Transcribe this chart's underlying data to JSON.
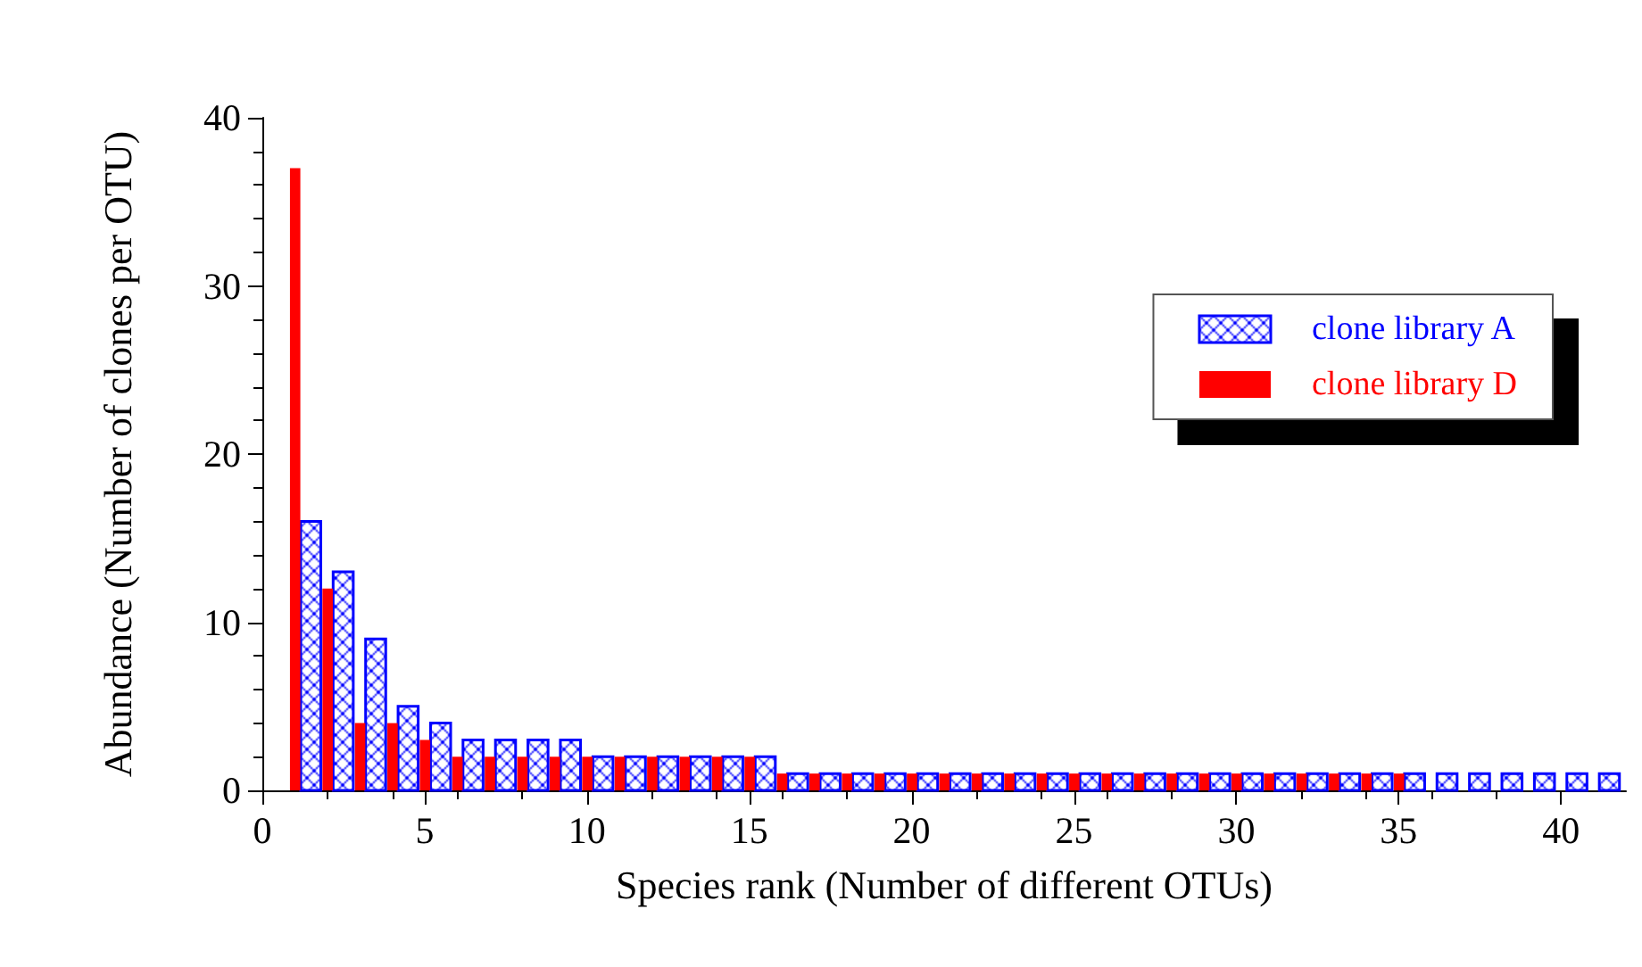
{
  "chart_data": {
    "type": "bar",
    "xlabel": "Species rank (Number of different OTUs)",
    "ylabel": "Abundance (Number of clones per OTU)",
    "x": [
      1,
      2,
      3,
      4,
      5,
      6,
      7,
      8,
      9,
      10,
      11,
      12,
      13,
      14,
      15,
      16,
      17,
      18,
      19,
      20,
      21,
      22,
      23,
      24,
      25,
      26,
      27,
      28,
      29,
      30,
      31,
      32,
      33,
      34,
      35,
      36,
      37,
      38,
      39,
      40,
      41
    ],
    "series": [
      {
        "name": "clone library A",
        "color": "#0000ff",
        "values": [
          16,
          13,
          9,
          5,
          4,
          3,
          3,
          3,
          3,
          2,
          2,
          2,
          2,
          2,
          2,
          1,
          1,
          1,
          1,
          1,
          1,
          1,
          1,
          1,
          1,
          1,
          1,
          1,
          1,
          1,
          1,
          1,
          1,
          1,
          1,
          1,
          1,
          1,
          1,
          1,
          1
        ]
      },
      {
        "name": "clone library D",
        "color": "#ff0000",
        "values": [
          37,
          12,
          4,
          4,
          3,
          2,
          2,
          2,
          2,
          2,
          2,
          2,
          2,
          2,
          2,
          1,
          1,
          1,
          1,
          1,
          1,
          1,
          1,
          1,
          1,
          1,
          1,
          1,
          1,
          1,
          1,
          1,
          1,
          1,
          1,
          null,
          null,
          null,
          null,
          null,
          null
        ]
      }
    ],
    "xlim": [
      0,
      42
    ],
    "xticks": [
      0,
      5,
      10,
      15,
      20,
      25,
      30,
      35,
      40
    ],
    "ylim": [
      0,
      40
    ],
    "yticks": [
      0,
      10,
      20,
      30,
      40
    ],
    "grid": false,
    "legend": "top right"
  }
}
